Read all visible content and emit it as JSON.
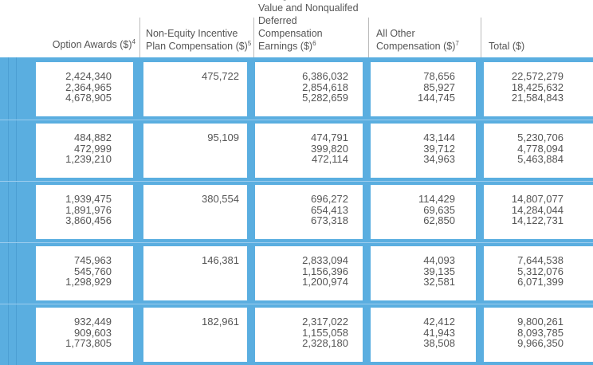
{
  "table": {
    "columns": [
      {
        "label": "Option Awards ($)",
        "note": "4"
      },
      {
        "label": "Non-Equity Incentive Plan Compensation ($)",
        "note": "5"
      },
      {
        "label": "Change in Pension Value and Nonqualifed Deferred Compensation Earnings ($)",
        "note": "6"
      },
      {
        "label": "All Other Compensation ($)",
        "note": "7"
      },
      {
        "label": "Total ($)"
      }
    ],
    "rows": [
      [
        [
          "2,424,340",
          "2,364,965",
          "4,678,905"
        ],
        [
          "475,722"
        ],
        [
          "6,386,032",
          "2,854,618",
          "5,282,659"
        ],
        [
          "78,656",
          "85,927",
          "144,745"
        ],
        [
          "22,572,279",
          "18,425,632",
          "21,584,843"
        ]
      ],
      [
        [
          "484,882",
          "472,999",
          "1,239,210"
        ],
        [
          "95,109"
        ],
        [
          "474,791",
          "399,820",
          "472,114"
        ],
        [
          "43,144",
          "39,712",
          "34,963"
        ],
        [
          "5,230,706",
          "4,778,094",
          "5,463,884"
        ]
      ],
      [
        [
          "1,939,475",
          "1,891,976",
          "3,860,456"
        ],
        [
          "380,554"
        ],
        [
          "696,272",
          "654,413",
          "673,318"
        ],
        [
          "114,429",
          "69,635",
          "62,850"
        ],
        [
          "14,807,077",
          "14,284,044",
          "14,122,731"
        ]
      ],
      [
        [
          "745,963",
          "545,760",
          "1,298,929"
        ],
        [
          "146,381"
        ],
        [
          "2,833,094",
          "1,156,396",
          "1,200,974"
        ],
        [
          "44,093",
          "39,135",
          "32,581"
        ],
        [
          "7,644,538",
          "5,312,076",
          "6,071,399"
        ]
      ],
      [
        [
          "932,449",
          "909,603",
          "1,773,805"
        ],
        [
          "182,961"
        ],
        [
          "2,317,022",
          "1,155,058",
          "2,328,180"
        ],
        [
          "42,412",
          "41,943",
          "38,508"
        ],
        [
          "9,800,261",
          "8,093,785",
          "9,966,350"
        ]
      ]
    ]
  }
}
